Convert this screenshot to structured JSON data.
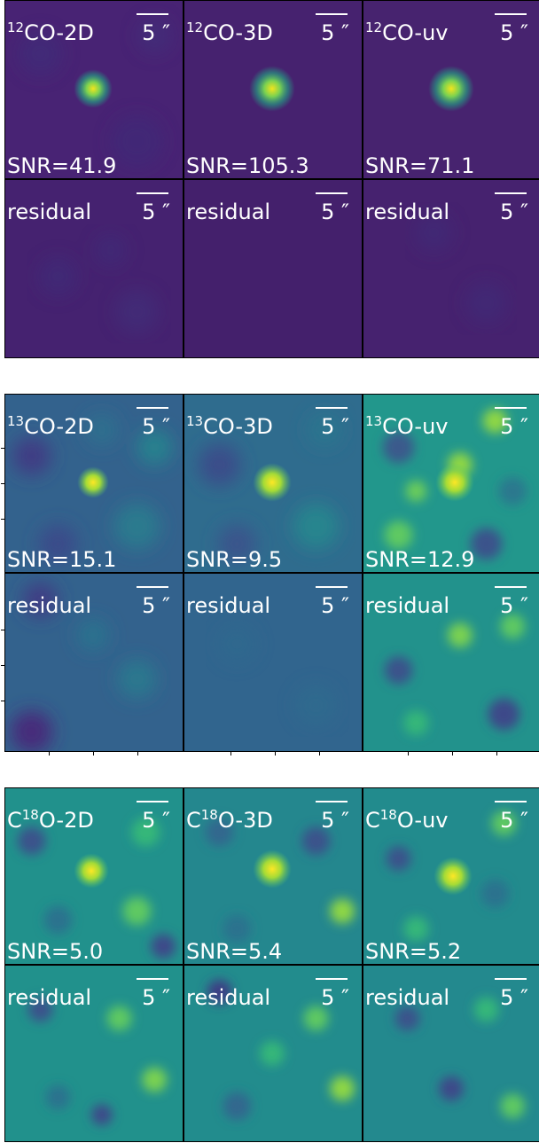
{
  "scale_text": "5 ″",
  "groups": [
    {
      "panels": [
        {
          "pre": "",
          "sup": "12",
          "post": "CO-2D",
          "snr": "SNR=41.9"
        },
        {
          "pre": "",
          "sup": "12",
          "post": "CO-3D",
          "snr": "SNR=105.3"
        },
        {
          "pre": "",
          "sup": "12",
          "post": "CO-uv",
          "snr": "SNR=71.1"
        }
      ],
      "residual_label": "residual"
    },
    {
      "panels": [
        {
          "pre": "",
          "sup": "13",
          "post": "CO-2D",
          "snr": "SNR=15.1"
        },
        {
          "pre": "",
          "sup": "13",
          "post": "CO-3D",
          "snr": "SNR=9.5"
        },
        {
          "pre": "",
          "sup": "13",
          "post": "CO-uv",
          "snr": "SNR=12.9"
        }
      ],
      "residual_label": "residual"
    },
    {
      "panels": [
        {
          "pre": "C",
          "sup": "18",
          "post": "O-2D",
          "snr": "SNR=5.0"
        },
        {
          "pre": "C",
          "sup": "18",
          "post": "O-3D",
          "snr": "SNR=5.4"
        },
        {
          "pre": "C",
          "sup": "18",
          "post": "O-uv",
          "snr": "SNR=5.2"
        }
      ],
      "residual_label": "residual"
    }
  ],
  "colors": {
    "cmap_low": "#3b1f5e",
    "cmap_mid": "#21908d",
    "cmap_high": "#fde725",
    "text": "#ffffff"
  }
}
